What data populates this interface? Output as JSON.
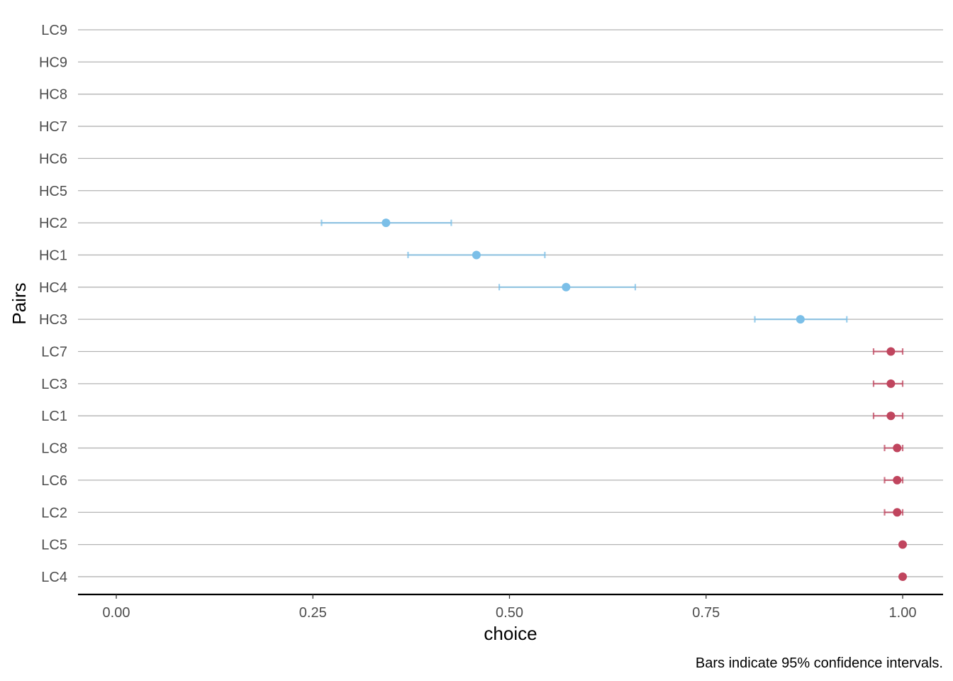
{
  "chart_data": {
    "type": "scatter",
    "xlabel": "choice",
    "ylabel": "Pairs",
    "caption": "Bars indicate 95% confidence intervals.",
    "xlim": [
      -0.025,
      1.025
    ],
    "x_ticks": [
      0,
      0.25,
      0.5,
      0.75,
      1
    ],
    "x_tick_labels": [
      "0.00",
      "0.25",
      "0.50",
      "0.75",
      "1.00"
    ],
    "grid": true,
    "categories": [
      "LC9",
      "HC9",
      "HC8",
      "HC7",
      "HC6",
      "HC5",
      "HC2",
      "HC1",
      "HC4",
      "HC3",
      "LC7",
      "LC3",
      "LC1",
      "LC8",
      "LC6",
      "LC2",
      "LC5",
      "LC4"
    ],
    "colors": {
      "HC": "#7bbfe8",
      "LC": "#c0455e"
    },
    "series": [
      {
        "group": "HC",
        "points": [
          {
            "category": "HC2",
            "x": 0.343,
            "ci_low": 0.261,
            "ci_high": 0.426
          },
          {
            "category": "HC1",
            "x": 0.458,
            "ci_low": 0.371,
            "ci_high": 0.545
          },
          {
            "category": "HC4",
            "x": 0.572,
            "ci_low": 0.487,
            "ci_high": 0.66
          },
          {
            "category": "HC3",
            "x": 0.87,
            "ci_low": 0.812,
            "ci_high": 0.929
          }
        ]
      },
      {
        "group": "LC",
        "points": [
          {
            "category": "LC7",
            "x": 0.985,
            "ci_low": 0.963,
            "ci_high": 1.0
          },
          {
            "category": "LC3",
            "x": 0.985,
            "ci_low": 0.963,
            "ci_high": 1.0
          },
          {
            "category": "LC1",
            "x": 0.985,
            "ci_low": 0.963,
            "ci_high": 1.0
          },
          {
            "category": "LC8",
            "x": 0.993,
            "ci_low": 0.977,
            "ci_high": 1.0
          },
          {
            "category": "LC6",
            "x": 0.993,
            "ci_low": 0.977,
            "ci_high": 1.0
          },
          {
            "category": "LC2",
            "x": 0.993,
            "ci_low": 0.977,
            "ci_high": 1.0
          },
          {
            "category": "LC5",
            "x": 1.0,
            "ci_low": 1.0,
            "ci_high": 1.0
          },
          {
            "category": "LC4",
            "x": 1.0,
            "ci_low": 1.0,
            "ci_high": 1.0
          }
        ]
      }
    ]
  }
}
